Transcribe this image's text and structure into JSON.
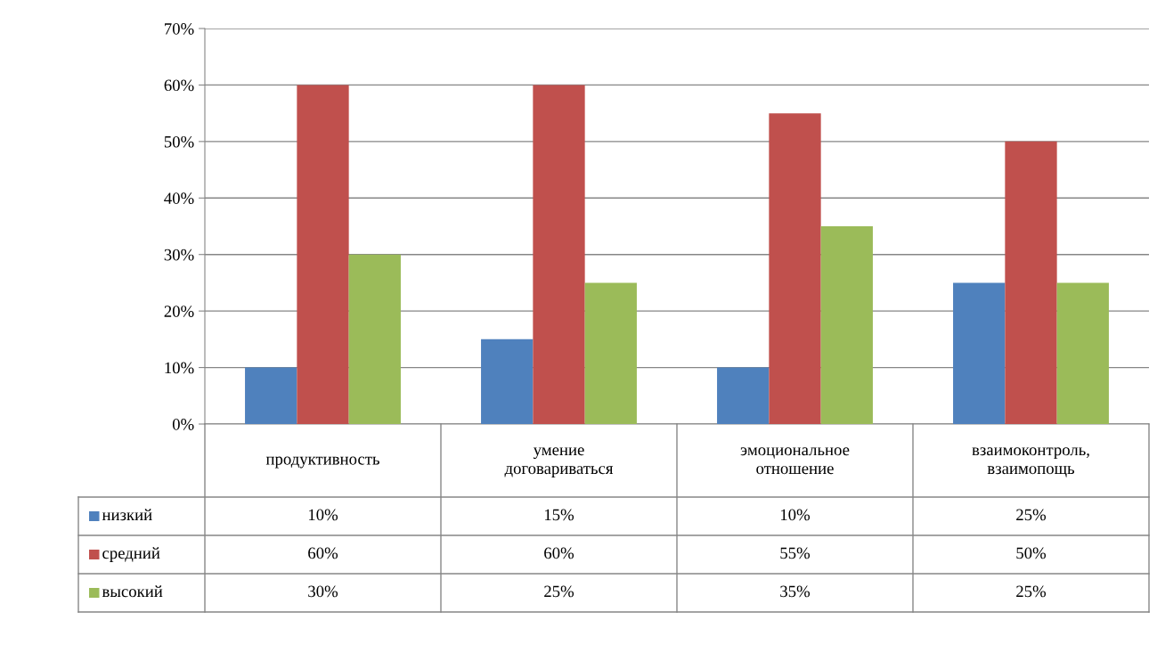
{
  "chart_data": {
    "type": "bar",
    "categories": [
      "продуктивность",
      "умение\nдоговариваться",
      "эмоциональное\nотношение",
      "взаимоконтроль,\nвзаимопощь"
    ],
    "series": [
      {
        "name": "низкий",
        "color": "#4f81bd",
        "values": [
          10,
          15,
          10,
          25
        ],
        "value_labels": [
          "10%",
          "15%",
          "10%",
          "25%"
        ]
      },
      {
        "name": "средний",
        "color": "#c0504d",
        "values": [
          60,
          60,
          55,
          50
        ],
        "value_labels": [
          "60%",
          "60%",
          "55%",
          "50%"
        ]
      },
      {
        "name": "высокий",
        "color": "#9bbb59",
        "values": [
          30,
          25,
          35,
          25
        ],
        "value_labels": [
          "30%",
          "25%",
          "35%",
          "25%"
        ]
      }
    ],
    "ylim": [
      0,
      70
    ],
    "yticks": [
      {
        "value": 0,
        "label": "0%"
      },
      {
        "value": 10,
        "label": "10%"
      },
      {
        "value": 20,
        "label": "20%"
      },
      {
        "value": 30,
        "label": "30%"
      },
      {
        "value": 40,
        "label": "40%"
      },
      {
        "value": 50,
        "label": "50%"
      },
      {
        "value": 60,
        "label": "60%"
      },
      {
        "value": 70,
        "label": "70%"
      }
    ],
    "grid": "y",
    "legend": "bottom"
  }
}
